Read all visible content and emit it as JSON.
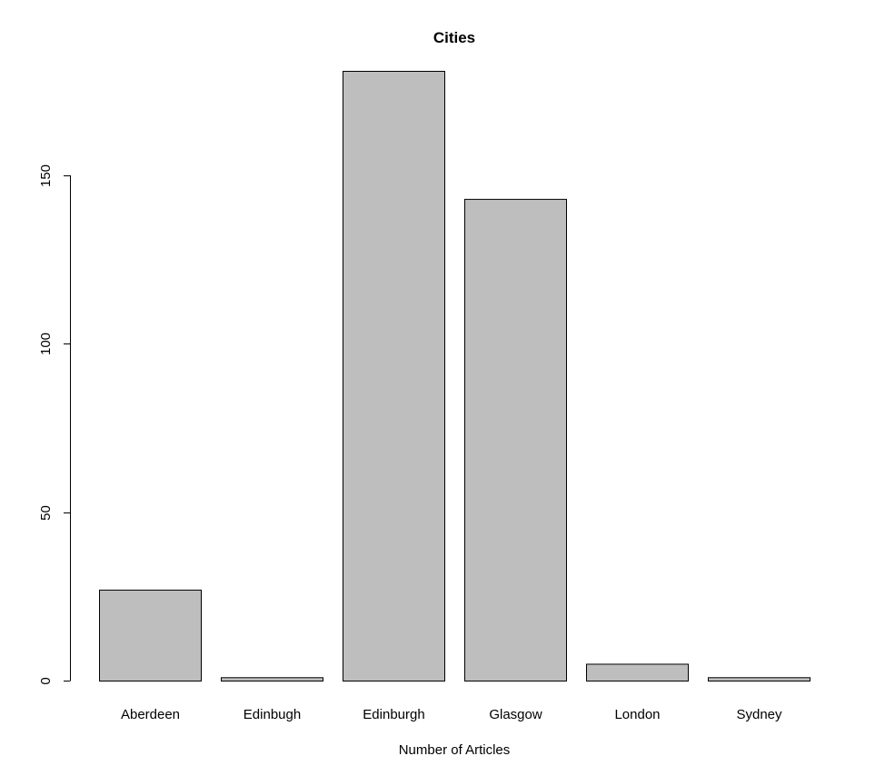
{
  "chart_data": {
    "type": "bar",
    "title": "Cities",
    "xlabel": "Number of Articles",
    "ylabel": "",
    "categories": [
      "Aberdeen",
      "Edinbugh",
      "Edinburgh",
      "Glasgow",
      "London",
      "Sydney"
    ],
    "values": [
      27,
      1,
      181,
      143,
      5,
      1
    ],
    "ylim": [
      0,
      181
    ],
    "yticks": [
      0,
      50,
      100,
      150
    ],
    "bar_color": "#bebebe",
    "grid": false
  }
}
